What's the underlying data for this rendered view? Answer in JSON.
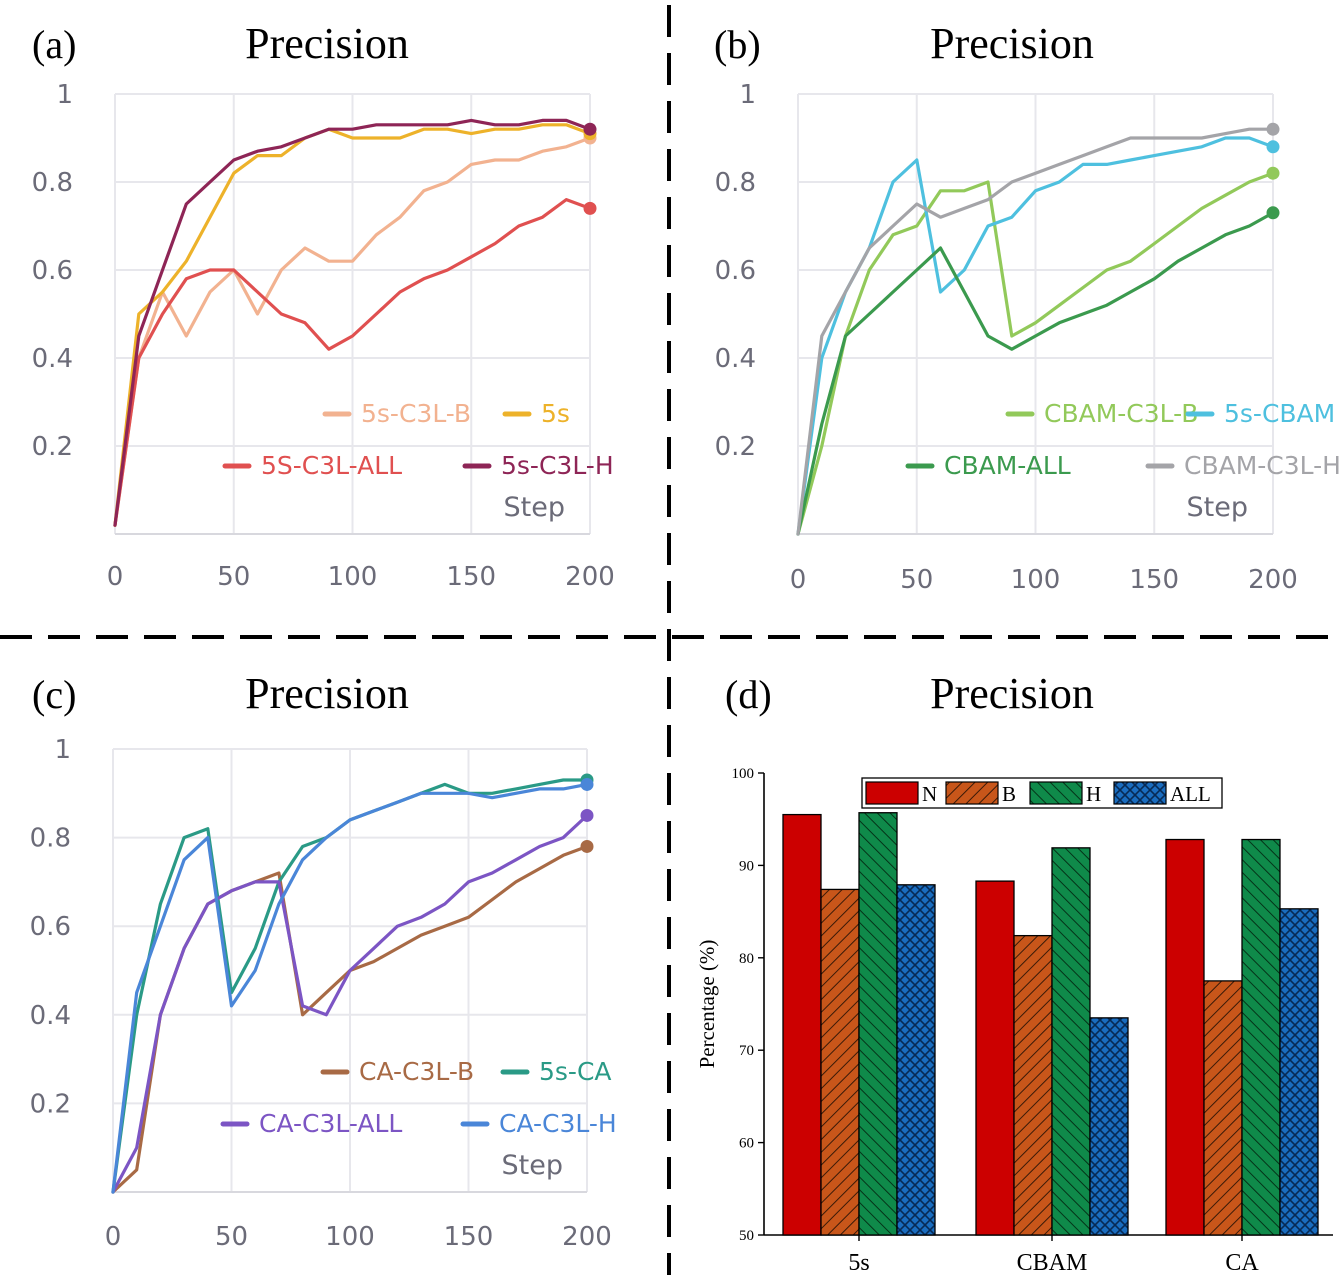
{
  "colors": {
    "5s-C3L-B": "#f2b290",
    "5s": "#edb22a",
    "5S-C3L-ALL": "#e05050",
    "5s-C3L-H": "#8e2556",
    "CBAM-C3L-B": "#92c95a",
    "5s-CBAM": "#4ec0df",
    "CBAM-ALL": "#3b9a4e",
    "CBAM-C3L-H": "#a4a4a8",
    "CA-C3L-B": "#a86a45",
    "5s-CA": "#2a9a86",
    "CA-C3L-ALL": "#7c55c4",
    "CA-C3L-H": "#4a86d8",
    "N": "#cc0000",
    "B": "#c8561a",
    "H": "#0f8a4a",
    "ALL": "#1a6dbf"
  },
  "chart_data": [
    {
      "panel": "(a)",
      "type": "line",
      "title": "Precision",
      "xlabel": "Step",
      "xlim": [
        0,
        200
      ],
      "ylim": [
        0,
        1
      ],
      "xticks": [
        "0",
        "50",
        "100",
        "150",
        "200"
      ],
      "yticks": [
        "0.2",
        "0.4",
        "0.6",
        "0.8",
        "1"
      ],
      "legend_rows": [
        [
          "5s-C3L-B",
          "5s"
        ],
        [
          "5S-C3L-ALL",
          "5s-C3L-H"
        ]
      ],
      "series": [
        {
          "name": "5s-C3L-B",
          "x": [
            0,
            10,
            20,
            30,
            40,
            50,
            60,
            70,
            80,
            90,
            100,
            110,
            120,
            130,
            140,
            150,
            160,
            170,
            180,
            190,
            200
          ],
          "values": [
            0.02,
            0.4,
            0.55,
            0.45,
            0.55,
            0.6,
            0.5,
            0.6,
            0.65,
            0.62,
            0.62,
            0.68,
            0.72,
            0.78,
            0.8,
            0.84,
            0.85,
            0.85,
            0.87,
            0.88,
            0.9
          ]
        },
        {
          "name": "5s",
          "x": [
            0,
            10,
            20,
            30,
            40,
            50,
            60,
            70,
            80,
            90,
            100,
            110,
            120,
            130,
            140,
            150,
            160,
            170,
            180,
            190,
            200
          ],
          "values": [
            0.02,
            0.5,
            0.55,
            0.62,
            0.72,
            0.82,
            0.86,
            0.86,
            0.9,
            0.92,
            0.9,
            0.9,
            0.9,
            0.92,
            0.92,
            0.91,
            0.92,
            0.92,
            0.93,
            0.93,
            0.91
          ]
        },
        {
          "name": "5S-C3L-ALL",
          "x": [
            0,
            10,
            20,
            30,
            40,
            50,
            60,
            70,
            80,
            90,
            100,
            110,
            120,
            130,
            140,
            150,
            160,
            170,
            180,
            190,
            200
          ],
          "values": [
            0.02,
            0.4,
            0.5,
            0.58,
            0.6,
            0.6,
            0.55,
            0.5,
            0.48,
            0.42,
            0.45,
            0.5,
            0.55,
            0.58,
            0.6,
            0.63,
            0.66,
            0.7,
            0.72,
            0.76,
            0.74
          ]
        },
        {
          "name": "5s-C3L-H",
          "x": [
            0,
            10,
            20,
            30,
            40,
            50,
            60,
            70,
            80,
            90,
            100,
            110,
            120,
            130,
            140,
            150,
            160,
            170,
            180,
            190,
            200
          ],
          "values": [
            0.02,
            0.45,
            0.6,
            0.75,
            0.8,
            0.85,
            0.87,
            0.88,
            0.9,
            0.92,
            0.92,
            0.93,
            0.93,
            0.93,
            0.93,
            0.94,
            0.93,
            0.93,
            0.94,
            0.94,
            0.92
          ]
        }
      ]
    },
    {
      "panel": "(b)",
      "type": "line",
      "title": "Precision",
      "xlabel": "Step",
      "xlim": [
        0,
        200
      ],
      "ylim": [
        0,
        1
      ],
      "xticks": [
        "0",
        "50",
        "100",
        "150",
        "200"
      ],
      "yticks": [
        "0.2",
        "0.4",
        "0.6",
        "0.8",
        "1"
      ],
      "legend_rows": [
        [
          "CBAM-C3L-B",
          "5s-CBAM"
        ],
        [
          "CBAM-ALL",
          "CBAM-C3L-H"
        ]
      ],
      "series": [
        {
          "name": "CBAM-C3L-B",
          "x": [
            0,
            10,
            20,
            30,
            40,
            50,
            60,
            70,
            80,
            90,
            100,
            110,
            120,
            130,
            140,
            150,
            160,
            170,
            180,
            190,
            200
          ],
          "values": [
            0.0,
            0.2,
            0.45,
            0.6,
            0.68,
            0.7,
            0.78,
            0.78,
            0.8,
            0.45,
            0.48,
            0.52,
            0.56,
            0.6,
            0.62,
            0.66,
            0.7,
            0.74,
            0.77,
            0.8,
            0.82
          ]
        },
        {
          "name": "5s-CBAM",
          "x": [
            0,
            10,
            20,
            30,
            40,
            50,
            60,
            70,
            80,
            90,
            100,
            110,
            120,
            130,
            140,
            150,
            160,
            170,
            180,
            190,
            200
          ],
          "values": [
            0.0,
            0.4,
            0.55,
            0.65,
            0.8,
            0.85,
            0.55,
            0.6,
            0.7,
            0.72,
            0.78,
            0.8,
            0.84,
            0.84,
            0.85,
            0.86,
            0.87,
            0.88,
            0.9,
            0.9,
            0.88
          ]
        },
        {
          "name": "CBAM-ALL",
          "x": [
            0,
            10,
            20,
            30,
            40,
            50,
            60,
            70,
            80,
            90,
            100,
            110,
            120,
            130,
            140,
            150,
            160,
            170,
            180,
            190,
            200
          ],
          "values": [
            0.0,
            0.25,
            0.45,
            0.5,
            0.55,
            0.6,
            0.65,
            0.55,
            0.45,
            0.42,
            0.45,
            0.48,
            0.5,
            0.52,
            0.55,
            0.58,
            0.62,
            0.65,
            0.68,
            0.7,
            0.73
          ]
        },
        {
          "name": "CBAM-C3L-H",
          "x": [
            0,
            10,
            20,
            30,
            40,
            50,
            60,
            70,
            80,
            90,
            100,
            110,
            120,
            130,
            140,
            150,
            160,
            170,
            180,
            190,
            200
          ],
          "values": [
            0.0,
            0.45,
            0.55,
            0.65,
            0.7,
            0.75,
            0.72,
            0.74,
            0.76,
            0.8,
            0.82,
            0.84,
            0.86,
            0.88,
            0.9,
            0.9,
            0.9,
            0.9,
            0.91,
            0.92,
            0.92
          ]
        }
      ]
    },
    {
      "panel": "(c)",
      "type": "line",
      "title": "Precision",
      "xlabel": "Step",
      "xlim": [
        0,
        200
      ],
      "ylim": [
        0,
        1
      ],
      "xticks": [
        "0",
        "50",
        "100",
        "150",
        "200"
      ],
      "yticks": [
        "0.2",
        "0.4",
        "0.6",
        "0.8",
        "1"
      ],
      "legend_rows": [
        [
          "CA-C3L-B",
          "5s-CA"
        ],
        [
          "CA-C3L-ALL",
          "CA-C3L-H"
        ]
      ],
      "series": [
        {
          "name": "CA-C3L-B",
          "x": [
            0,
            10,
            20,
            30,
            40,
            50,
            60,
            70,
            80,
            90,
            100,
            110,
            120,
            130,
            140,
            150,
            160,
            170,
            180,
            190,
            200
          ],
          "values": [
            0.0,
            0.05,
            0.4,
            0.55,
            0.65,
            0.68,
            0.7,
            0.72,
            0.4,
            0.45,
            0.5,
            0.52,
            0.55,
            0.58,
            0.6,
            0.62,
            0.66,
            0.7,
            0.73,
            0.76,
            0.78
          ]
        },
        {
          "name": "5s-CA",
          "x": [
            0,
            10,
            20,
            30,
            40,
            50,
            60,
            70,
            80,
            90,
            100,
            110,
            120,
            130,
            140,
            150,
            160,
            170,
            180,
            190,
            200
          ],
          "values": [
            0.0,
            0.4,
            0.65,
            0.8,
            0.82,
            0.45,
            0.55,
            0.7,
            0.78,
            0.8,
            0.84,
            0.86,
            0.88,
            0.9,
            0.92,
            0.9,
            0.9,
            0.91,
            0.92,
            0.93,
            0.93
          ]
        },
        {
          "name": "CA-C3L-ALL",
          "x": [
            0,
            10,
            20,
            30,
            40,
            50,
            60,
            70,
            80,
            90,
            100,
            110,
            120,
            130,
            140,
            150,
            160,
            170,
            180,
            190,
            200
          ],
          "values": [
            0.0,
            0.1,
            0.4,
            0.55,
            0.65,
            0.68,
            0.7,
            0.7,
            0.42,
            0.4,
            0.5,
            0.55,
            0.6,
            0.62,
            0.65,
            0.7,
            0.72,
            0.75,
            0.78,
            0.8,
            0.85
          ]
        },
        {
          "name": "CA-C3L-H",
          "x": [
            0,
            10,
            20,
            30,
            40,
            50,
            60,
            70,
            80,
            90,
            100,
            110,
            120,
            130,
            140,
            150,
            160,
            170,
            180,
            190,
            200
          ],
          "values": [
            0.0,
            0.45,
            0.6,
            0.75,
            0.8,
            0.42,
            0.5,
            0.65,
            0.75,
            0.8,
            0.84,
            0.86,
            0.88,
            0.9,
            0.9,
            0.9,
            0.89,
            0.9,
            0.91,
            0.91,
            0.92
          ]
        }
      ]
    },
    {
      "panel": "(d)",
      "type": "bar",
      "title": "Precision",
      "ylabel": "Percentage (%)",
      "ylim": [
        50,
        100
      ],
      "yticks": [
        "50",
        "60",
        "70",
        "80",
        "90",
        "100"
      ],
      "categories": [
        "5s",
        "CBAM",
        "CA"
      ],
      "series": [
        {
          "name": "N",
          "values": [
            95.5,
            88.3,
            92.8
          ]
        },
        {
          "name": "B",
          "values": [
            87.4,
            82.4,
            77.5
          ]
        },
        {
          "name": "H",
          "values": [
            95.7,
            91.9,
            92.8
          ]
        },
        {
          "name": "ALL",
          "values": [
            87.9,
            73.5,
            85.3
          ]
        }
      ]
    }
  ]
}
